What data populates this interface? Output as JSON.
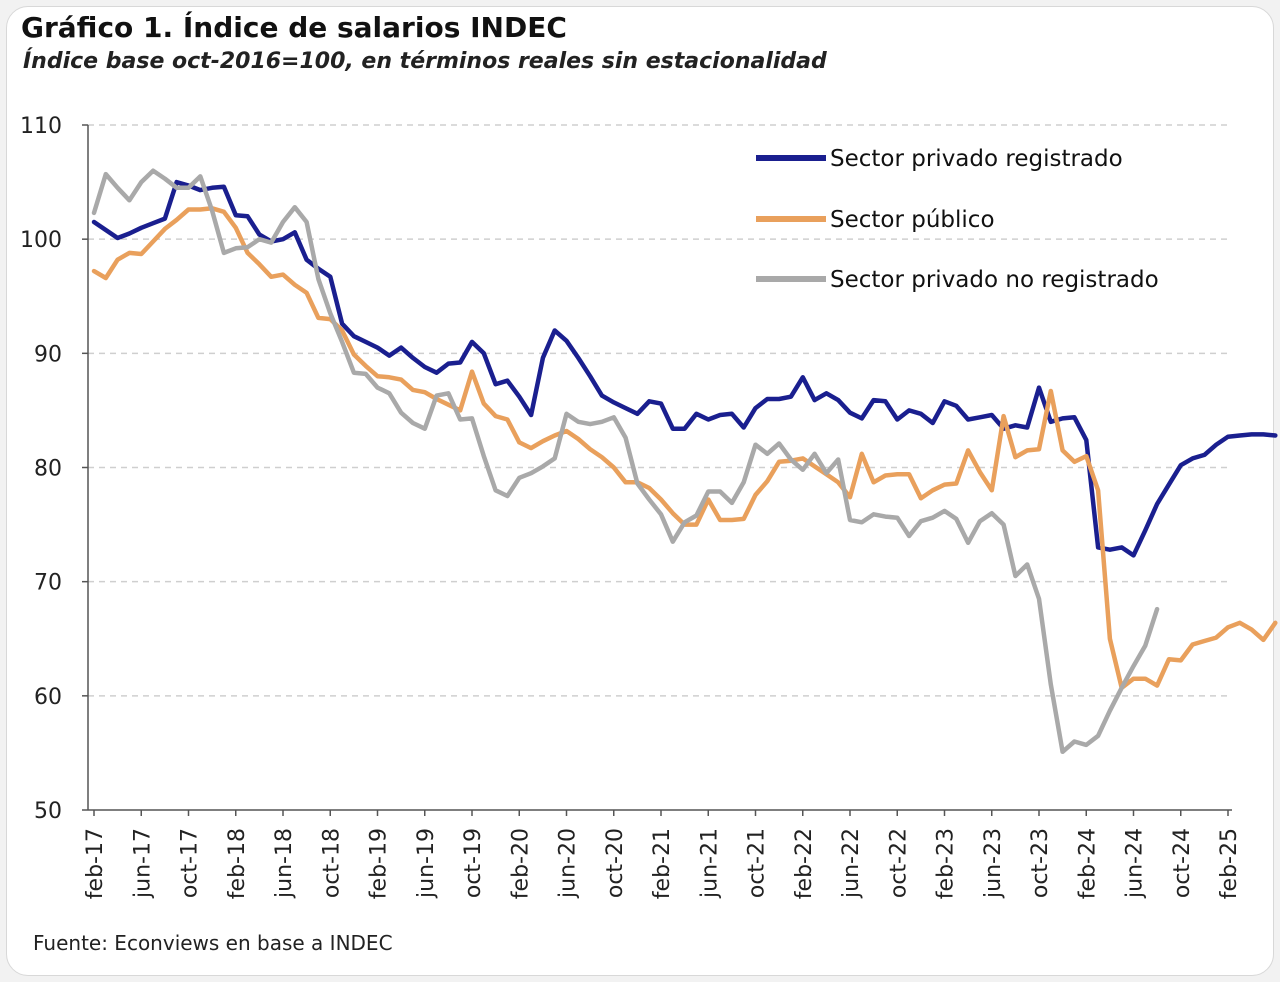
{
  "header": {
    "title": "Gráfico 1. Índice de salarios INDEC",
    "subtitle": "Índice base oct-2016=100, en términos reales sin estacionalidad"
  },
  "footer": {
    "source": "Fuente: Econviews en base a INDEC"
  },
  "colors": {
    "registrado": "#1a1f8f",
    "publico": "#e9a05c",
    "no_registrado": "#a9a9a9",
    "grid": "#cfcfcf",
    "axis": "#555555"
  },
  "chart_data": {
    "type": "line",
    "title": "Gráfico 1. Índice de salarios INDEC",
    "subtitle": "Índice base oct-2016=100, en términos reales sin estacionalidad",
    "xlabel": "",
    "ylabel": "",
    "ylim": [
      50,
      110
    ],
    "yticks": [
      50,
      60,
      70,
      80,
      90,
      100,
      110
    ],
    "x_start": "feb-17",
    "x_end": "feb-25",
    "xticks": [
      "feb-17",
      "jun-17",
      "oct-17",
      "feb-18",
      "jun-18",
      "oct-18",
      "feb-19",
      "jun-19",
      "oct-19",
      "feb-20",
      "jun-20",
      "oct-20",
      "feb-21",
      "jun-21",
      "oct-21",
      "feb-22",
      "jun-22",
      "oct-22",
      "feb-23",
      "jun-23",
      "oct-23",
      "feb-24",
      "jun-24",
      "oct-24",
      "feb-25"
    ],
    "legend_position": "top-right",
    "grid": true,
    "series": [
      {
        "name": "Sector privado registrado",
        "color_key": "registrado",
        "values": [
          101.5,
          100.8,
          100.1,
          100.5,
          101,
          101.4,
          101.8,
          105,
          104.7,
          104.3,
          104.5,
          104.6,
          102.1,
          102,
          100.4,
          99.8,
          100,
          100.6,
          98.2,
          97.4,
          96.7,
          92.6,
          91.5,
          91,
          90.5,
          89.8,
          90.5,
          89.6,
          88.8,
          88.3,
          89.1,
          89.2,
          91,
          90,
          87.3,
          87.6,
          86.2,
          84.6,
          89.6,
          92,
          91.1,
          89.6,
          88,
          86.3,
          85.7,
          85.2,
          84.7,
          85.8,
          85.6,
          83.4,
          83.4,
          84.7,
          84.2,
          84.6,
          84.7,
          83.5,
          85.2,
          86,
          86,
          86.2,
          87.9,
          85.9,
          86.5,
          85.9,
          84.8,
          84.3,
          85.9,
          85.8,
          84.2,
          85,
          84.7,
          83.9,
          85.8,
          85.4,
          84.2,
          84.4,
          84.6,
          83.4,
          83.7,
          83.5,
          87,
          84,
          84.3,
          84.4,
          82.4,
          73,
          72.8,
          73,
          72.3,
          74.5,
          76.8,
          78.5,
          80.2,
          80.8,
          81.1,
          82,
          82.7,
          82.8,
          82.9,
          82.9,
          82.8
        ]
      },
      {
        "name": "Sector público",
        "color_key": "publico",
        "values": [
          97.2,
          96.6,
          98.2,
          98.8,
          98.7,
          99.8,
          100.9,
          101.7,
          102.6,
          102.6,
          102.7,
          102.4,
          101,
          98.8,
          97.8,
          96.7,
          96.9,
          96,
          95.3,
          93.1,
          93,
          92,
          89.9,
          88.9,
          88,
          87.9,
          87.7,
          86.8,
          86.6,
          86,
          85.5,
          85,
          88.4,
          85.6,
          84.5,
          84.2,
          82.2,
          81.7,
          82.3,
          82.8,
          83.2,
          82.5,
          81.6,
          80.9,
          80,
          78.7,
          78.7,
          78.2,
          77.2,
          76,
          75,
          75,
          77.2,
          75.4,
          75.4,
          75.5,
          77.6,
          78.8,
          80.5,
          80.6,
          80.8,
          80.1,
          79.4,
          78.7,
          77.4,
          81.2,
          78.7,
          79.3,
          79.4,
          79.4,
          77.3,
          78,
          78.5,
          78.6,
          81.5,
          79.6,
          78,
          84.5,
          80.9,
          81.5,
          81.6,
          86.7,
          81.5,
          80.5,
          81,
          78,
          65,
          60.7,
          61.5,
          61.5,
          60.9,
          63.2,
          63.1,
          64.5,
          64.8,
          65.1,
          66,
          66.4,
          65.8,
          64.9,
          66.4
        ]
      },
      {
        "name": "Sector privado no registrado",
        "color_key": "no_registrado",
        "values": [
          102.3,
          105.7,
          104.5,
          103.4,
          105,
          106,
          105.3,
          104.5,
          104.5,
          105.5,
          102.5,
          98.8,
          99.2,
          99.3,
          100,
          99.7,
          101.5,
          102.8,
          101.5,
          96.5,
          93.5,
          91,
          88.3,
          88.2,
          87,
          86.5,
          84.8,
          83.9,
          83.4,
          86.3,
          86.5,
          84.2,
          84.3,
          81,
          78,
          77.5,
          79.1,
          79.5,
          80.1,
          80.8,
          84.7,
          84,
          83.8,
          84,
          84.4,
          82.6,
          78.6,
          77.2,
          75.9,
          73.5,
          75.2,
          75.8,
          77.9,
          77.9,
          76.9,
          78.7,
          82,
          81.2,
          82.1,
          80.7,
          79.8,
          81.2,
          79.5,
          80.7,
          75.4,
          75.2,
          75.9,
          75.7,
          75.6,
          74,
          75.3,
          75.6,
          76.2,
          75.5,
          73.4,
          75.3,
          76,
          75,
          70.5,
          71.5,
          68.5,
          61,
          55.1,
          56,
          55.7,
          56.5,
          58.7,
          60.7,
          62.6,
          64.4,
          67.6
        ]
      }
    ]
  }
}
